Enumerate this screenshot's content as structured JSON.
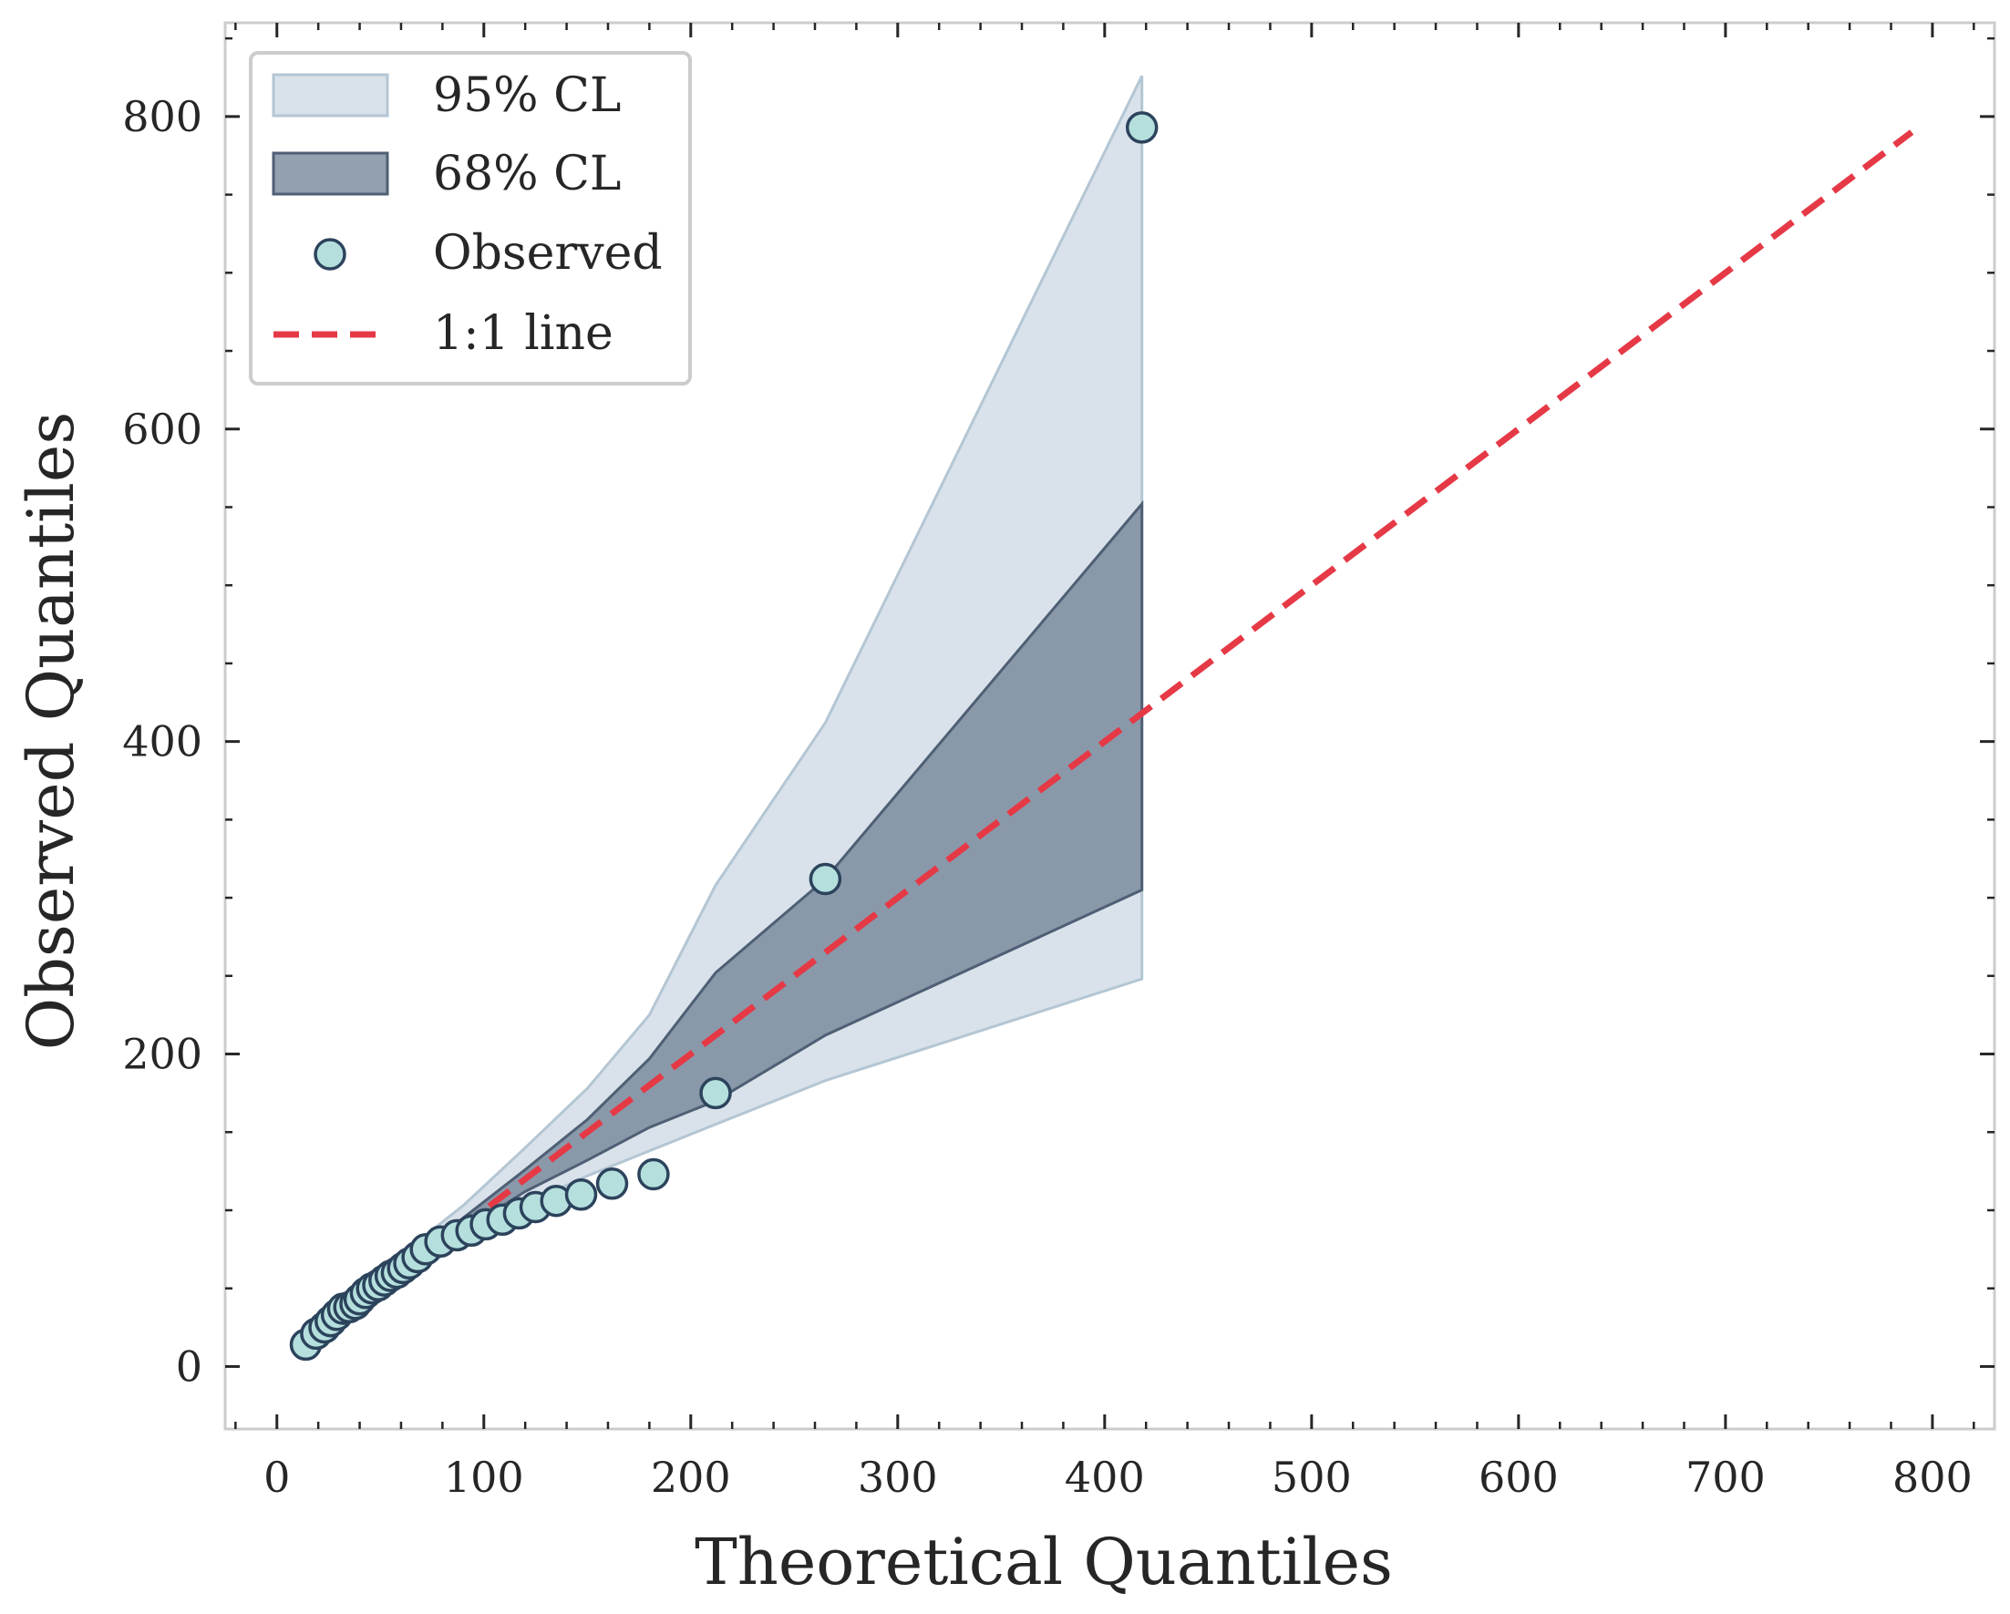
{
  "chart_data": {
    "type": "scatter",
    "title": "",
    "xlabel": "Theoretical Quantiles",
    "ylabel": "Observed Quantiles",
    "xlim": [
      -25,
      830
    ],
    "ylim": [
      -40,
      860
    ],
    "grid": false,
    "legend_position": "top-left",
    "x_ticks": [
      0,
      100,
      200,
      300,
      400,
      500,
      600,
      700,
      800
    ],
    "x_tick_labels": [
      "0",
      "100",
      "200",
      "300",
      "400",
      "500",
      "600",
      "700",
      "800"
    ],
    "y_ticks": [
      0,
      200,
      400,
      600,
      800
    ],
    "y_tick_labels": [
      "0",
      "200",
      "400",
      "600",
      "800"
    ],
    "x_minor_step": 20,
    "y_minor_step": 50,
    "legend": [
      {
        "key": "ci95",
        "label": "95% CL"
      },
      {
        "key": "ci68",
        "label": "68% CL"
      },
      {
        "key": "observed",
        "label": "Observed"
      },
      {
        "key": "line",
        "label": "1:1 line"
      }
    ],
    "colors": {
      "ci95_fill": "#c9d6e1",
      "ci95_edge": "#b4c6d3",
      "ci68_fill": "#6e8094",
      "ci68_edge": "#4f5f75",
      "point_fill": "#b5dfdd",
      "point_edge": "#2c435c",
      "line": "#e63946",
      "frame": "#cccccc",
      "text": "#262626"
    },
    "ci95": {
      "x": [
        14,
        30,
        50,
        70,
        90,
        120,
        150,
        180,
        212,
        265,
        418
      ],
      "lower": [
        10,
        25,
        44,
        62,
        80,
        104,
        122,
        138,
        155,
        183,
        248
      ],
      "upper": [
        18,
        36,
        60,
        82,
        103,
        140,
        178,
        225,
        308,
        412,
        826
      ]
    },
    "ci68": {
      "x": [
        14,
        30,
        50,
        70,
        90,
        120,
        150,
        180,
        212,
        265,
        418
      ],
      "lower": [
        12,
        28,
        48,
        67,
        87,
        112,
        132,
        153,
        170,
        212,
        305
      ],
      "upper": [
        16,
        33,
        55,
        75,
        95,
        126,
        158,
        197,
        252,
        312,
        552
      ]
    },
    "observed": {
      "x": [
        14,
        19,
        23,
        26,
        29,
        32,
        35,
        38,
        40,
        43,
        46,
        49,
        52,
        55,
        58,
        61,
        64,
        68,
        72,
        79,
        87,
        94,
        101,
        109,
        117,
        125,
        135,
        147,
        162,
        182,
        212,
        265,
        418
      ],
      "y": [
        14,
        21,
        25,
        29,
        33,
        37,
        38,
        40,
        43,
        47,
        50,
        52,
        55,
        58,
        60,
        63,
        66,
        70,
        75,
        80,
        84,
        87,
        91,
        94,
        98,
        102,
        106,
        110,
        117,
        123,
        175,
        312,
        793
      ]
    },
    "reference_line": {
      "x": [
        14,
        790
      ],
      "y": [
        14,
        790
      ]
    }
  }
}
